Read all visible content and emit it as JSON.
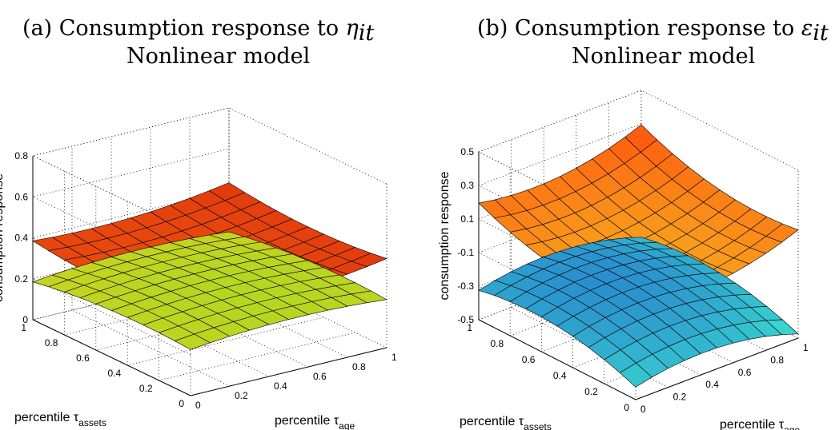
{
  "chart_data": [
    {
      "type": "surface3d",
      "title_prefix": "(a) Consumption response to ",
      "title_symbol": "η",
      "title_subscript": "it",
      "subtitle": "Nonlinear model",
      "zlabel": "consumption response",
      "xlabel_prefix": "percentile τ",
      "xlabel_sub": "age",
      "ylabel_prefix": "percentile τ",
      "ylabel_sub": "assets",
      "x_ticks": [
        "0",
        "0.2",
        "0.4",
        "0.6",
        "0.8",
        "1"
      ],
      "y_ticks": [
        "0",
        "0.2",
        "0.4",
        "0.6",
        "0.8",
        "1"
      ],
      "z_ticks": [
        "0",
        "0.2",
        "0.4",
        "0.6",
        "0.8"
      ],
      "zlim": [
        0,
        0.8
      ],
      "grid": true,
      "surfaces": [
        {
          "name_hint": "upper",
          "center": 0.35,
          "c0": 0.35,
          "ca": 0.05,
          "cb": 0.0,
          "curv": 0.12,
          "colors": [
            "#d21a0c",
            "#ff7a10"
          ]
        },
        {
          "name_hint": "lower",
          "center": 0.22,
          "c0": 0.26,
          "ca": 0.01,
          "cb": -0.04,
          "curv": -0.1,
          "colors": [
            "#7ddf2a",
            "#f2cc1a"
          ]
        }
      ]
    },
    {
      "type": "surface3d",
      "title_prefix": "(b) Consumption response to ",
      "title_symbol": "ε",
      "title_subscript": "it",
      "subtitle": "Nonlinear model",
      "zlabel": "consumption response",
      "xlabel_prefix": "percentile τ",
      "xlabel_sub": "age",
      "ylabel_prefix": "percentile τ",
      "ylabel_sub": "assets",
      "x_ticks": [
        "0",
        "0.2",
        "0.4",
        "0.6",
        "0.8",
        "1"
      ],
      "y_ticks": [
        "0",
        "0.2",
        "0.4",
        "0.6",
        "0.8",
        "1"
      ],
      "z_ticks": [
        "-0.5",
        "-0.3",
        "-0.1",
        "0.1",
        "0.3",
        "0.5"
      ],
      "zlim": [
        -0.5,
        0.5
      ],
      "grid": true,
      "surfaces": [
        {
          "name_hint": "upper",
          "c0": 0.02,
          "ca": 0.1,
          "cb": 0.15,
          "curv": 0.3,
          "colors": [
            "#ff5a10",
            "#f2e028"
          ]
        },
        {
          "name_hint": "lower",
          "c0": -0.25,
          "ca": -0.05,
          "cb": 0.1,
          "curv": -0.3,
          "colors": [
            "#1a3ccc",
            "#3ce8d0"
          ]
        }
      ]
    }
  ]
}
